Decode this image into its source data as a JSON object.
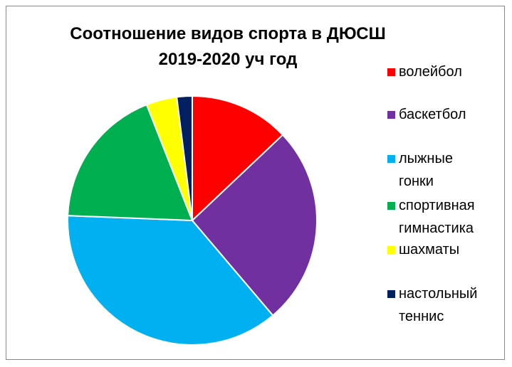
{
  "chart_data": {
    "type": "pie",
    "title": "Соотношение видов спорта в ДЮСШ 2019-2020 уч год",
    "title_lines": [
      "Соотношение видов спорта в ДЮСШ",
      "2019-2020 уч год"
    ],
    "legend_position": "right",
    "categories": [
      "волейбол",
      "баскетбол",
      "лыжные гонки",
      "спортивная гимнастика",
      "шахматы",
      "настольный теннис"
    ],
    "values": [
      13,
      26,
      37,
      18.5,
      4,
      2
    ],
    "colors": [
      "#ff0000",
      "#7030a0",
      "#00b0f0",
      "#00b050",
      "#ffff00",
      "#002060"
    ],
    "legend": [
      {
        "lines": [
          "волейбол"
        ]
      },
      {
        "lines": [
          "баскетбол"
        ]
      },
      {
        "lines": [
          "лыжные",
          "гонки"
        ]
      },
      {
        "lines": [
          "спортивная",
          "гимнастика"
        ]
      },
      {
        "lines": [
          "шахматы"
        ]
      },
      {
        "lines": [
          "настольный",
          "теннис"
        ]
      }
    ]
  }
}
